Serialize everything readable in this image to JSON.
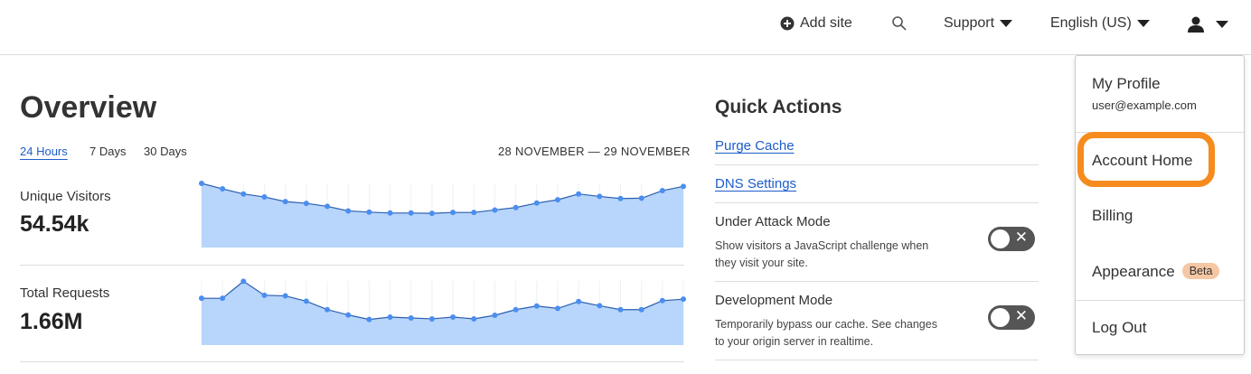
{
  "topbar": {
    "add_site": "Add site",
    "support": "Support",
    "language": "English (US)",
    "icons": [
      "plus-circle-icon",
      "search-icon",
      "user-icon"
    ]
  },
  "overview": {
    "title": "Overview",
    "ranges": [
      "24 Hours",
      "7 Days",
      "30 Days"
    ],
    "active_range": "24 Hours",
    "date_range": "28 NOVEMBER — 29 NOVEMBER",
    "metrics": [
      {
        "label": "Unique Visitors",
        "value": "54.54k"
      },
      {
        "label": "Total Requests",
        "value": "1.66M"
      }
    ]
  },
  "chart_data": [
    {
      "type": "area",
      "series": [
        {
          "values": [
            100,
            91.5,
            83.5,
            78.8,
            71.7,
            68.9,
            64.2,
            57.1,
            55.2,
            53.8,
            53.8,
            53.3,
            54.7,
            54.7,
            58.5,
            62.3,
            69.3,
            74.5,
            83.5,
            79.7,
            76.4,
            76.9,
            88.7,
            95.3
          ]
        }
      ],
      "note_scale": "relative",
      "grid": true,
      "color": "#4a8ef0",
      "fill": "#b8d5fb"
    },
    {
      "type": "area",
      "series": [
        {
          "values": [
            73,
            73,
            99.5,
            77.7,
            76.7,
            68.4,
            55.3,
            47,
            40,
            43.7,
            42.3,
            40.9,
            43.7,
            40.9,
            46.5,
            55.3,
            60.9,
            57.2,
            67.9,
            61.4,
            55.3,
            55.3,
            69.3,
            71.6
          ]
        }
      ],
      "grid": true,
      "color": "#4a8ef0",
      "fill": "#b8d5fb"
    }
  ],
  "quick_actions": {
    "title": "Quick Actions",
    "links": [
      "Purge Cache",
      "DNS Settings"
    ],
    "toggles": [
      {
        "title": "Under Attack Mode",
        "desc": "Show visitors a JavaScript challenge when they visit your site.",
        "on": false
      },
      {
        "title": "Development Mode",
        "desc": "Temporarily bypass our cache. See changes to your origin server in realtime.",
        "on": false
      }
    ]
  },
  "menu": {
    "profile": "My Profile",
    "email": "user@example.com",
    "account_home": "Account Home",
    "billing": "Billing",
    "appearance": "Appearance",
    "beta": "Beta",
    "logout": "Log Out",
    "highlight_color": "#f68b1e"
  }
}
